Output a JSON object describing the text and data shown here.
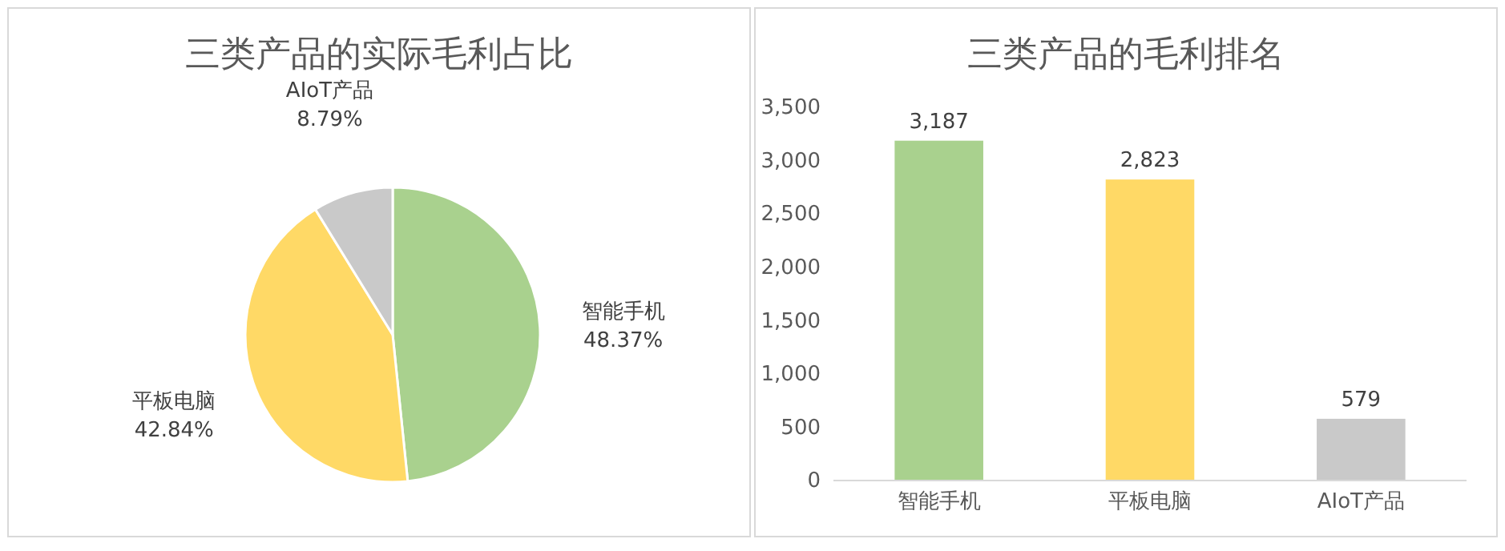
{
  "chart_data": [
    {
      "type": "pie",
      "title": "三类产品的实际毛利占比",
      "categories": [
        "智能手机",
        "平板电脑",
        "AIoT产品"
      ],
      "values": [
        48.37,
        42.84,
        8.79
      ],
      "colors": [
        "#a9d18e",
        "#ffd966",
        "#c9c9c9"
      ],
      "value_labels": [
        "48.37%",
        "42.84%",
        "8.79%"
      ]
    },
    {
      "type": "bar",
      "title": "三类产品的毛利排名",
      "categories": [
        "智能手机",
        "平板电脑",
        "AIoT产品"
      ],
      "values": [
        3187,
        2823,
        579
      ],
      "colors": [
        "#a9d18e",
        "#ffd966",
        "#c9c9c9"
      ],
      "value_labels": [
        "3,187",
        "2,823",
        "579"
      ],
      "ylim": [
        0,
        3500
      ],
      "yticks": [
        0,
        500,
        {
          "value": 1000,
          "label": "1,000"
        },
        {
          "value": 1500,
          "label": "1,500"
        },
        {
          "value": 2000,
          "label": "2,000"
        },
        {
          "value": 2500,
          "label": "2,500"
        },
        {
          "value": 3000,
          "label": "3,000"
        },
        {
          "value": 3500,
          "label": "3,500"
        }
      ],
      "grid": false
    }
  ]
}
